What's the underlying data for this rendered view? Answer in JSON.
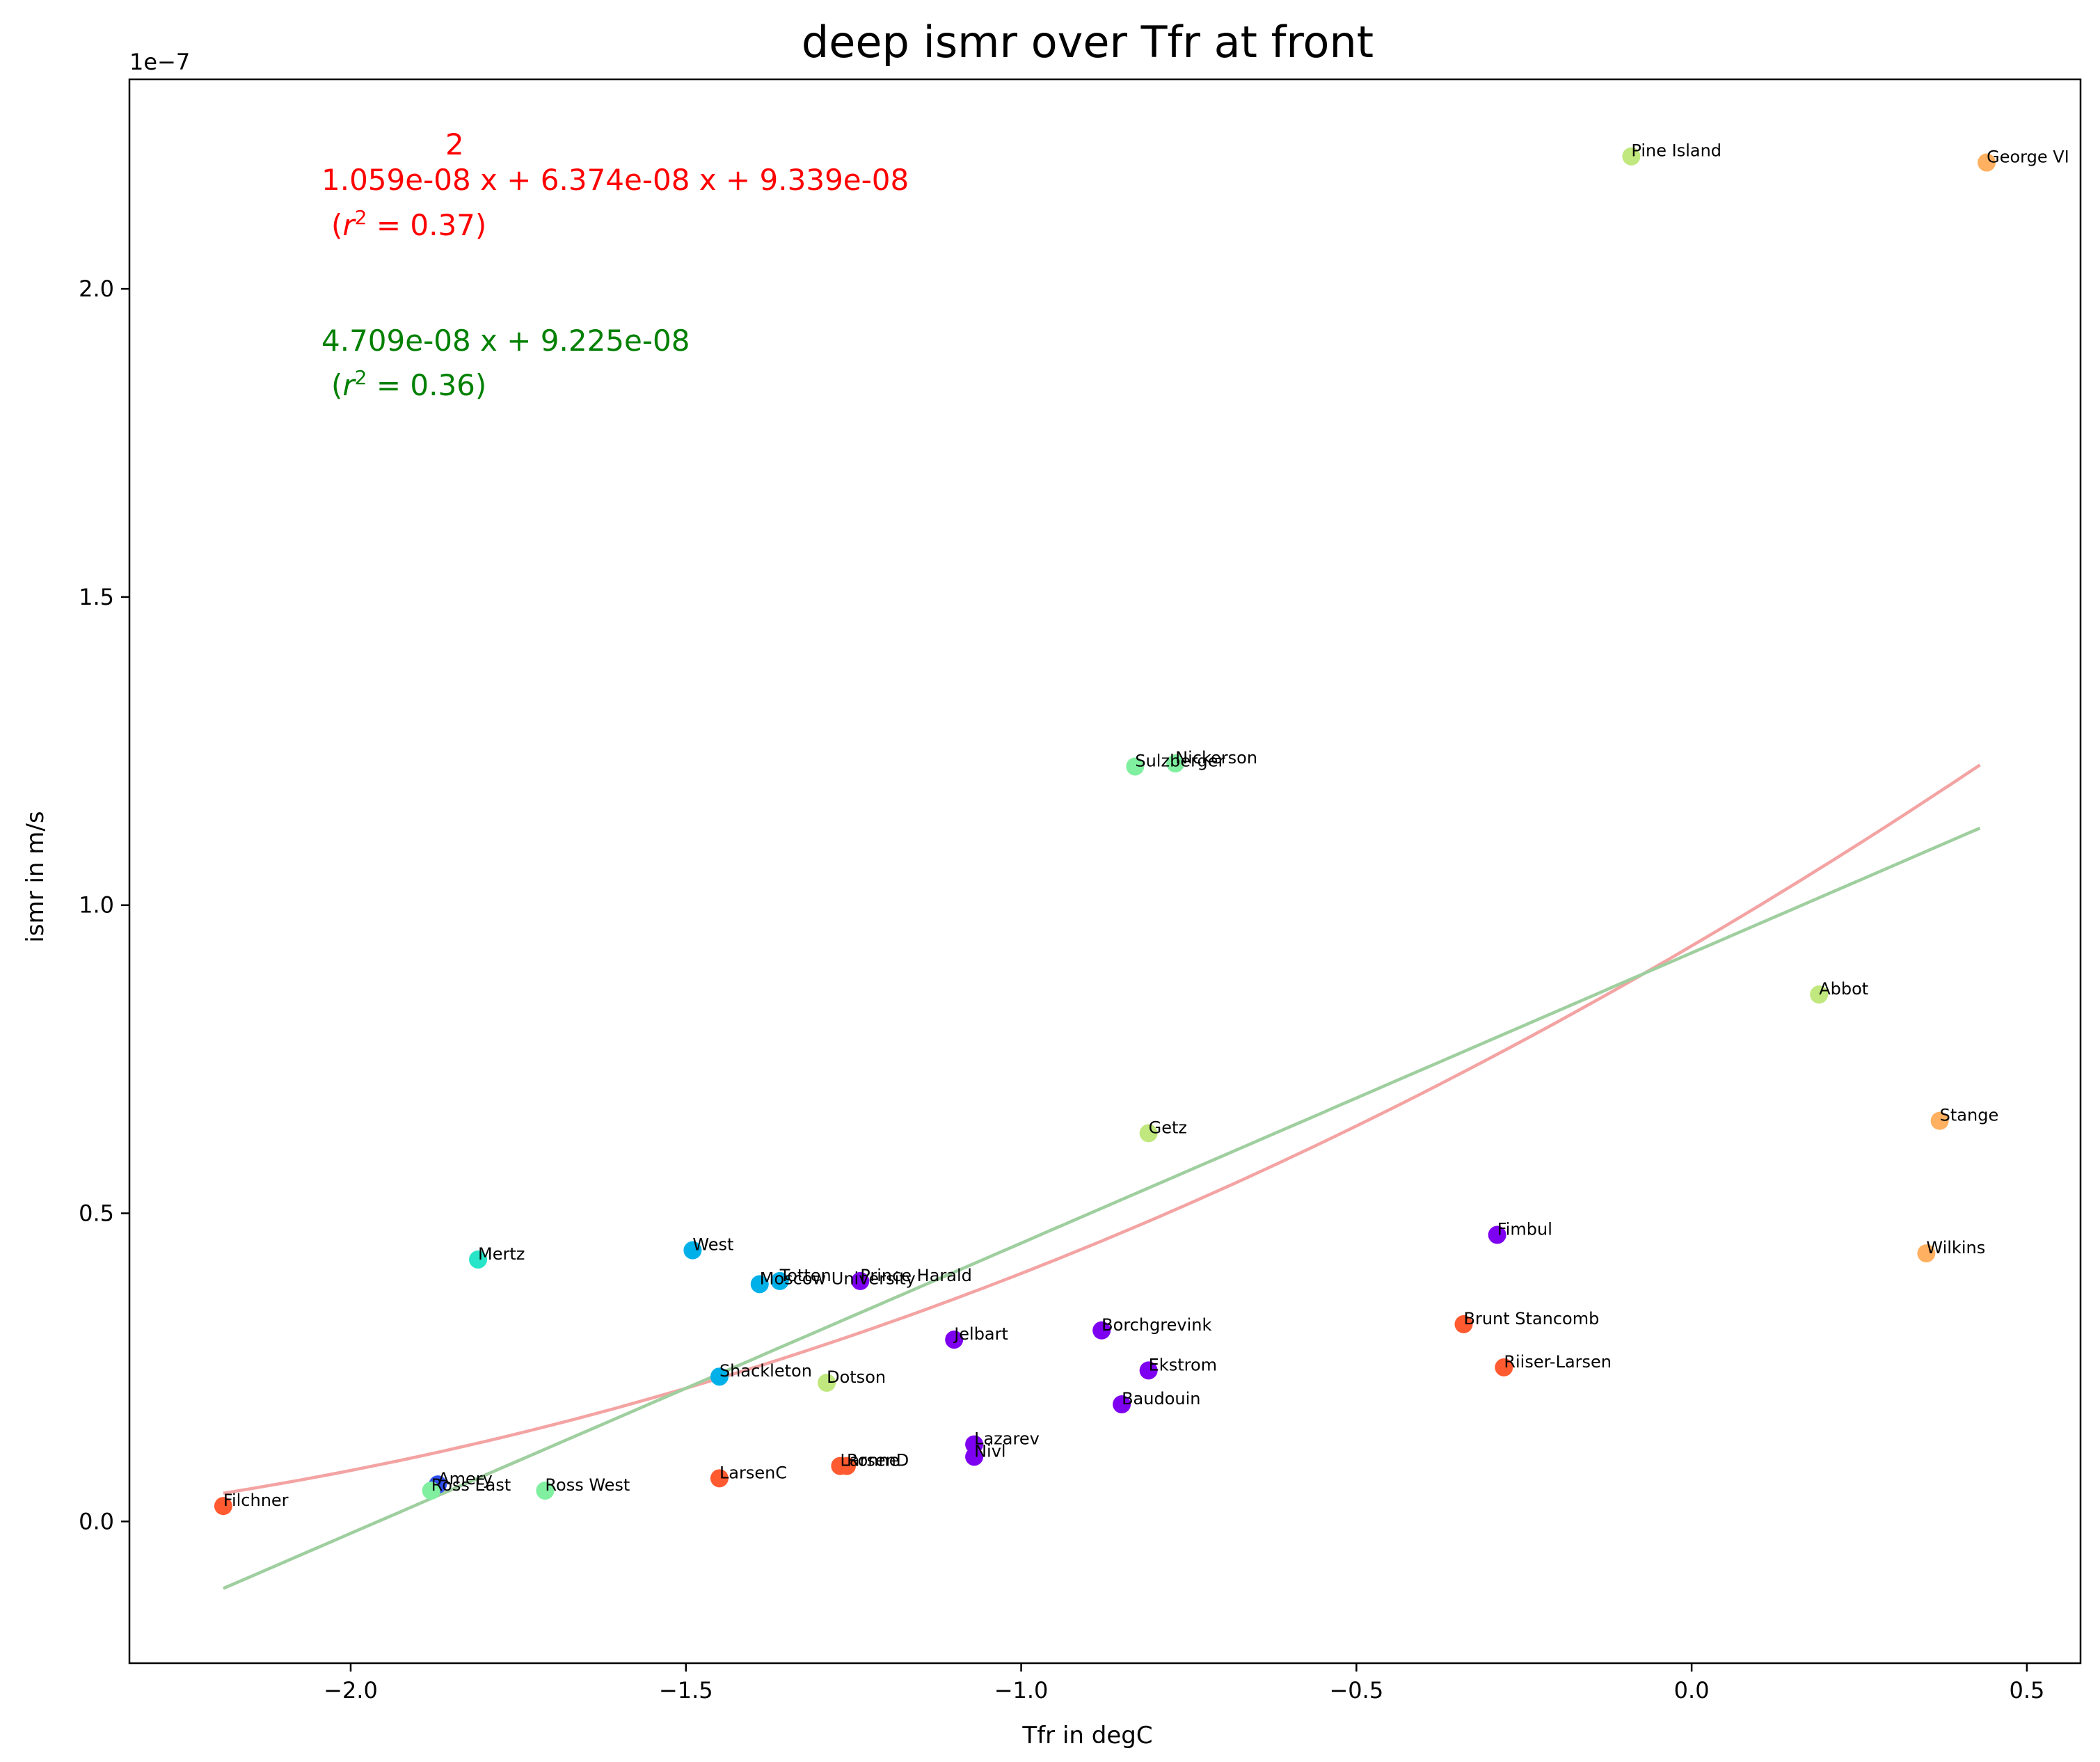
{
  "chart_data": {
    "type": "scatter",
    "title": "deep ismr over Tfr at front",
    "xlabel": "Tfr in degC",
    "ylabel": "ismr in m/s",
    "y_offset_text": "1e−7",
    "xlim": [
      -2.33,
      0.58
    ],
    "ylim": [
      -2.3e-08,
      2.34e-07
    ],
    "xticks": [
      -2.0,
      -1.5,
      -1.0,
      -0.5,
      0.0,
      0.5
    ],
    "xtick_labels": [
      "−2.0",
      "−1.5",
      "−1.0",
      "−0.5",
      "0.0",
      "0.5"
    ],
    "yticks": [
      0.0,
      5e-08,
      1e-07,
      1.5e-07,
      2e-07
    ],
    "ytick_labels": [
      "0.0",
      "0.5",
      "1.0",
      "1.5",
      "2.0"
    ],
    "grid": false,
    "points": [
      {
        "name": "Pine Island",
        "x": -0.09,
        "y": 2.215e-07,
        "color": "#c0e87e"
      },
      {
        "name": "George VI",
        "x": 0.44,
        "y": 2.205e-07,
        "color": "#ffb060"
      },
      {
        "name": "Sulzberger",
        "x": -0.83,
        "y": 1.225e-07,
        "color": "#80f0a0"
      },
      {
        "name": "Nickerson",
        "x": -0.77,
        "y": 1.23e-07,
        "color": "#80f0a0"
      },
      {
        "name": "Abbot",
        "x": 0.19,
        "y": 8.55e-08,
        "color": "#c0e87e"
      },
      {
        "name": "Stange",
        "x": 0.37,
        "y": 6.5e-08,
        "color": "#ffb060"
      },
      {
        "name": "Getz",
        "x": -0.81,
        "y": 6.3e-08,
        "color": "#c0e87e"
      },
      {
        "name": "Fimbul",
        "x": -0.29,
        "y": 4.65e-08,
        "color": "#7e00f0"
      },
      {
        "name": "Wilkins",
        "x": 0.35,
        "y": 4.35e-08,
        "color": "#ffb060"
      },
      {
        "name": "Mertz",
        "x": -1.81,
        "y": 4.25e-08,
        "color": "#28e4c8"
      },
      {
        "name": "West",
        "x": -1.49,
        "y": 4.4e-08,
        "color": "#00b0e8"
      },
      {
        "name": "Moscow University",
        "x": -1.39,
        "y": 3.85e-08,
        "color": "#00b0e8"
      },
      {
        "name": "Totten",
        "x": -1.36,
        "y": 3.9e-08,
        "color": "#00b0e8"
      },
      {
        "name": "Prince Harald",
        "x": -1.24,
        "y": 3.9e-08,
        "color": "#7e00f0"
      },
      {
        "name": "Brunt Stancomb",
        "x": -0.34,
        "y": 3.2e-08,
        "color": "#ff5a30"
      },
      {
        "name": "Borchgrevink",
        "x": -0.88,
        "y": 3.1e-08,
        "color": "#7e00f0"
      },
      {
        "name": "Jelbart",
        "x": -1.1,
        "y": 2.95e-08,
        "color": "#7e00f0"
      },
      {
        "name": "Riiser-Larsen",
        "x": -0.28,
        "y": 2.5e-08,
        "color": "#ff5a30"
      },
      {
        "name": "Ekstrom",
        "x": -0.81,
        "y": 2.45e-08,
        "color": "#7e00f0"
      },
      {
        "name": "Shackleton",
        "x": -1.45,
        "y": 2.35e-08,
        "color": "#00b0e8"
      },
      {
        "name": "Dotson",
        "x": -1.29,
        "y": 2.25e-08,
        "color": "#c0e87e"
      },
      {
        "name": "Baudouin",
        "x": -0.85,
        "y": 1.9e-08,
        "color": "#7e00f0"
      },
      {
        "name": "Lazarev",
        "x": -1.07,
        "y": 1.25e-08,
        "color": "#7e00f0"
      },
      {
        "name": "Nivl",
        "x": -1.07,
        "y": 1.05e-08,
        "color": "#7e00f0"
      },
      {
        "name": "LarsenD",
        "x": -1.27,
        "y": 9e-09,
        "color": "#ff5a30"
      },
      {
        "name": "Ronne",
        "x": -1.26,
        "y": 9e-09,
        "color": "#ff5a30"
      },
      {
        "name": "LarsenC",
        "x": -1.45,
        "y": 7e-09,
        "color": "#ff5a30"
      },
      {
        "name": "Amery",
        "x": -1.87,
        "y": 6e-09,
        "color": "#3050f0"
      },
      {
        "name": "Ross East",
        "x": -1.88,
        "y": 5e-09,
        "color": "#80f0a0"
      },
      {
        "name": "Ross West",
        "x": -1.71,
        "y": 5e-09,
        "color": "#80f0a0"
      },
      {
        "name": "Filchner",
        "x": -2.19,
        "y": 2.5e-09,
        "color": "#ff5a30"
      }
    ],
    "fits": [
      {
        "kind": "quadratic",
        "coefficients": [
          1.059e-08,
          6.374e-08,
          9.339e-08
        ],
        "x_range": [
          -2.19,
          0.43
        ],
        "color": "#f4a3a3",
        "label_superscript": "2",
        "label_equation": "1.059e-08 x + 6.374e-08 x + 9.339e-08",
        "label_r2_prefix": "(",
        "label_r2_var": "r",
        "label_r2_sup": "2",
        "label_r2_value": " = 0.37)",
        "text_color": "#ff0000"
      },
      {
        "kind": "linear",
        "coefficients": [
          4.709e-08,
          9.225e-08
        ],
        "x_range": [
          -2.19,
          0.43
        ],
        "color": "#9fcf9f",
        "label_equation": "4.709e-08 x + 9.225e-08",
        "label_r2_prefix": "(",
        "label_r2_var": "r",
        "label_r2_sup": "2",
        "label_r2_value": " = 0.36)",
        "text_color": "#008000"
      }
    ]
  }
}
